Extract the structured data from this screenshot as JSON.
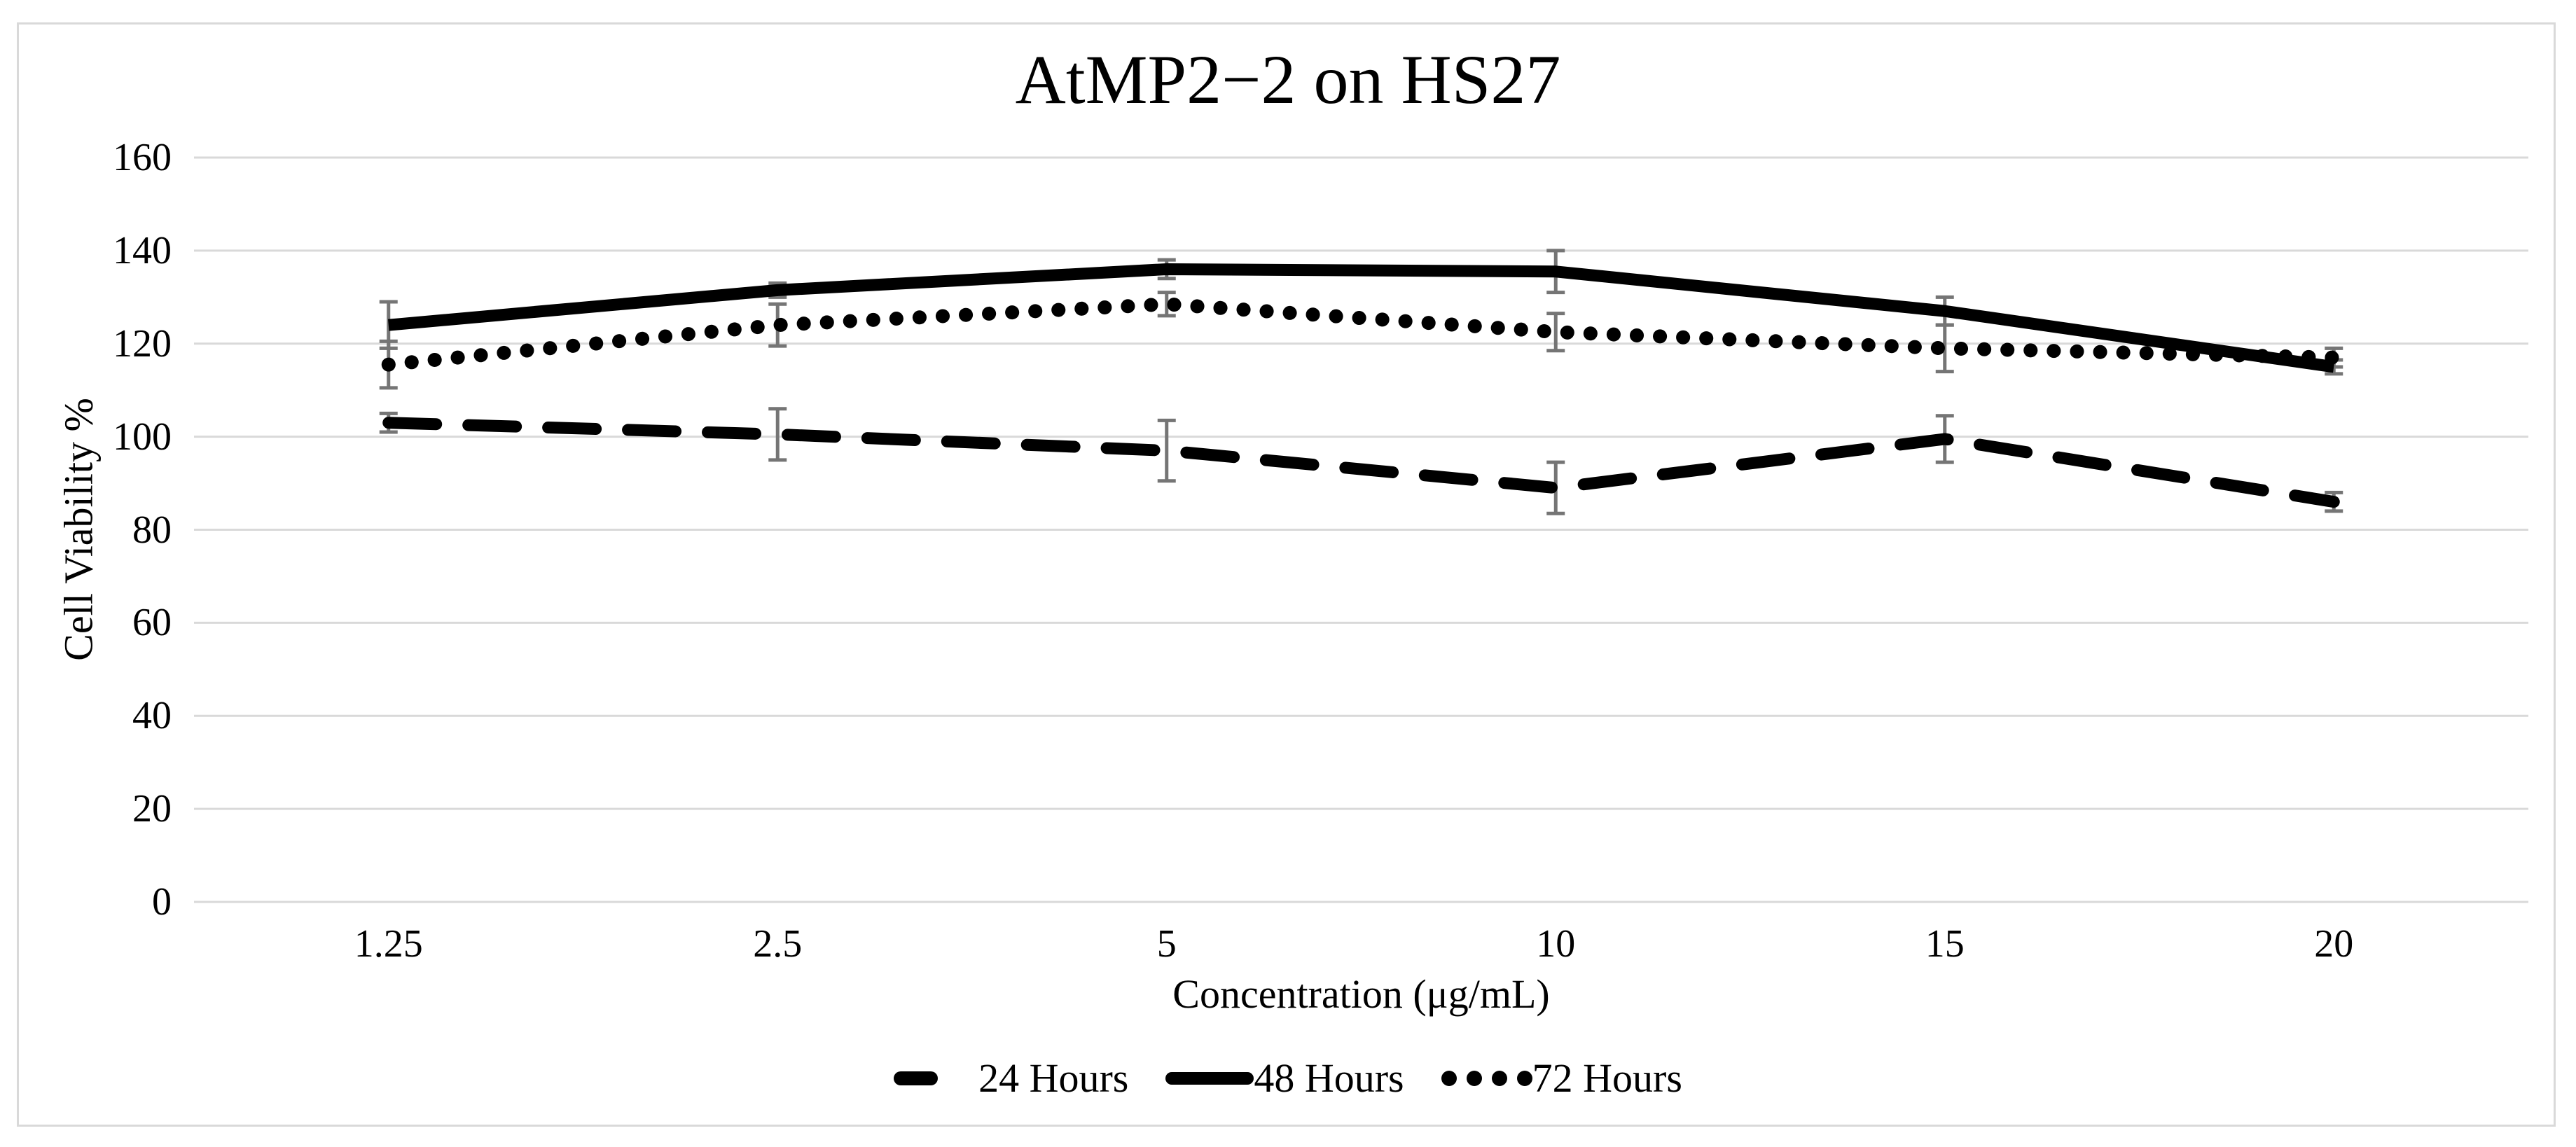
{
  "figure": {
    "background": "#ffffff",
    "border_color": "#d9d9d9"
  },
  "chart_data": {
    "type": "line",
    "title": "AtMP2−2 on HS27",
    "xlabel": "Concentration (μg/mL)",
    "ylabel": "Cell Viability %",
    "categories": [
      "1.25",
      "2.5",
      "5",
      "10",
      "15",
      "20"
    ],
    "x_values": [
      1.25,
      2.5,
      5,
      10,
      15,
      20
    ],
    "ylim": [
      0,
      160
    ],
    "yticks": [
      0,
      20,
      40,
      60,
      80,
      100,
      120,
      140,
      160
    ],
    "grid": "horizontal",
    "gridline_color": "#d9d9d9",
    "error_bar_color": "#757575",
    "legend_position": "bottom",
    "series": [
      {
        "name": "24 Hours",
        "style": "dashed",
        "color": "#000000",
        "values": [
          103,
          100.5,
          97,
          89,
          99.5,
          86
        ],
        "error": [
          2,
          5.5,
          6.5,
          5.5,
          5,
          2
        ]
      },
      {
        "name": "48 Hours",
        "style": "solid",
        "color": "#000000",
        "values": [
          124,
          131.5,
          136,
          135.5,
          127,
          115
        ],
        "error": [
          5,
          1.5,
          2,
          4.5,
          3,
          1.5
        ]
      },
      {
        "name": "72 Hours",
        "style": "dotted",
        "color": "#000000",
        "values": [
          115.5,
          124,
          128.5,
          122.5,
          119,
          117
        ],
        "error": [
          5,
          4.5,
          2.5,
          4,
          5,
          2
        ]
      }
    ]
  }
}
